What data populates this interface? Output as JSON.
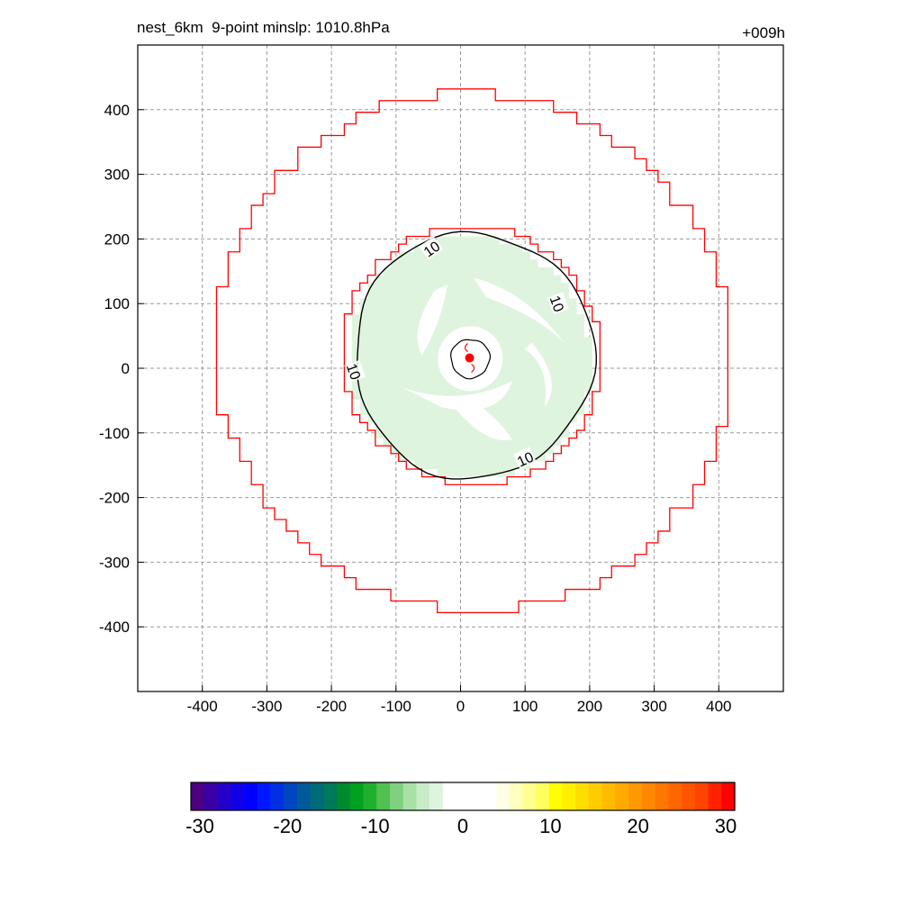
{
  "chart_data": {
    "type": "contour",
    "title_left": "nest_6km  9-point minslp: 1010.8hPa",
    "title_right": "+009h",
    "xlim": [
      -500,
      500
    ],
    "ylim": [
      -500,
      500
    ],
    "x_ticks": [
      -400,
      -300,
      -200,
      -100,
      0,
      100,
      200,
      300,
      400
    ],
    "y_ticks": [
      400,
      300,
      200,
      100,
      0,
      -100,
      -200,
      -300,
      -400
    ],
    "grid": true,
    "outer_domain_color": "#ff0000",
    "shading_color": "#dff4df",
    "contour_color": "#000000",
    "storm_marker_color": "#ff0000",
    "storm_center": [
      14,
      16
    ],
    "contour_levels": [
      "10",
      "10",
      "10",
      "10"
    ],
    "colorbar": {
      "ticks": [
        "-30",
        "-20",
        "-10",
        "0",
        "10",
        "20",
        "30"
      ],
      "colors": [
        "#4b0082",
        "#3a00a6",
        "#2600c8",
        "#1000e6",
        "#0000ff",
        "#0018ff",
        "#0030e0",
        "#0046c0",
        "#005a9a",
        "#006a78",
        "#00785a",
        "#008a30",
        "#00a020",
        "#20b030",
        "#50c050",
        "#80d080",
        "#a8e0a8",
        "#c8ecc8",
        "#dff4df",
        "#ffffff",
        "#ffffff",
        "#ffffff",
        "#ffffff",
        "#ffffe8",
        "#ffffc0",
        "#ffff90",
        "#ffff60",
        "#ffff00",
        "#ffee00",
        "#ffdd00",
        "#ffcc00",
        "#ffbb00",
        "#ffaa00",
        "#ff9900",
        "#ff8800",
        "#ff7700",
        "#ff6600",
        "#ff5500",
        "#ff4400",
        "#ff2200",
        "#ff0000"
      ]
    }
  }
}
